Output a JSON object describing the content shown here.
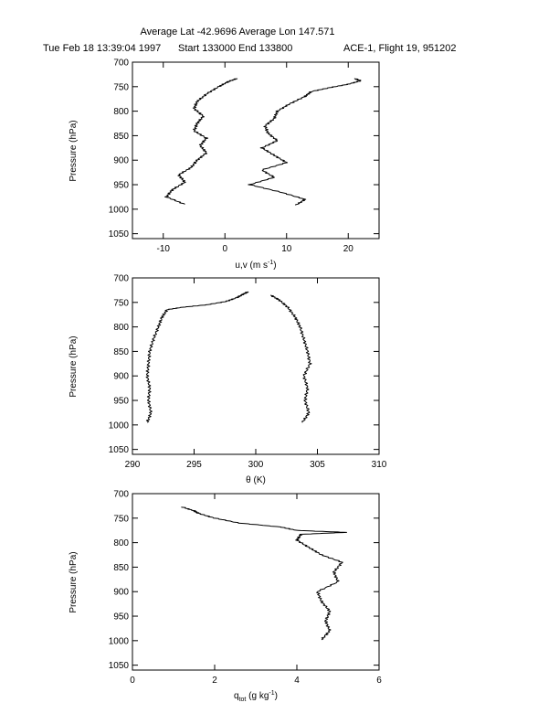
{
  "header": {
    "line1": "Average Lat -42.9696  Average Lon 147.571",
    "date": "Tue Feb 18 13:39:04 1997",
    "start_end": "Start 133000  End 133800",
    "flight": "ACE-1, Flight 19, 951202"
  },
  "chart_data": [
    {
      "type": "line",
      "title": "",
      "xlabel": "u,v (m s",
      "xlabel_sup": "-1",
      "xlabel_tail": ")",
      "ylabel": "Pressure (hPa)",
      "xlim": [
        -15,
        25
      ],
      "ylim": [
        1060,
        700
      ],
      "xticks": [
        -10,
        0,
        10,
        20
      ],
      "yticks": [
        700,
        750,
        800,
        850,
        900,
        950,
        1000,
        1050
      ],
      "series": [
        {
          "y": [
            990,
            975,
            960,
            945,
            930,
            915,
            900,
            885,
            870,
            855,
            840,
            825,
            810,
            795,
            780,
            765,
            750,
            740,
            733
          ],
          "x": [
            -6.5,
            -9.5,
            -8.5,
            -6.5,
            -7.5,
            -5.5,
            -4.5,
            -3.0,
            -4.0,
            -3.0,
            -5.0,
            -4.5,
            -3.5,
            -5.0,
            -4.5,
            -3.0,
            -1.0,
            0.5,
            2.0
          ]
        },
        {
          "y": [
            992,
            980,
            965,
            950,
            935,
            920,
            905,
            890,
            875,
            860,
            845,
            830,
            815,
            800,
            785,
            770,
            760,
            752,
            745,
            738,
            733
          ],
          "x": [
            11.5,
            13.0,
            9.0,
            4.0,
            8.0,
            6.0,
            10.0,
            8.0,
            6.0,
            8.5,
            7.0,
            6.5,
            8.0,
            8.5,
            10.5,
            13.0,
            14.0,
            17.0,
            20.0,
            22.0,
            21.0
          ]
        }
      ]
    },
    {
      "type": "line",
      "title": "",
      "xlabel": "θ (K)",
      "ylabel": "Pressure (hPa)",
      "xlim": [
        290,
        310
      ],
      "ylim": [
        1060,
        700
      ],
      "xticks": [
        290,
        295,
        300,
        305,
        310
      ],
      "yticks": [
        700,
        750,
        800,
        850,
        900,
        950,
        1000,
        1050
      ],
      "series": [
        {
          "y": [
            995,
            975,
            950,
            925,
            900,
            875,
            850,
            825,
            800,
            780,
            765,
            760,
            755,
            748,
            740,
            733,
            728
          ],
          "x": [
            291.2,
            291.5,
            291.3,
            291.4,
            291.2,
            291.3,
            291.4,
            291.7,
            292.1,
            292.4,
            292.8,
            294.0,
            296.0,
            297.6,
            298.5,
            299.0,
            299.4
          ]
        },
        {
          "y": [
            995,
            975,
            950,
            925,
            900,
            875,
            850,
            825,
            800,
            780,
            760,
            745,
            735
          ],
          "x": [
            303.8,
            304.3,
            304.0,
            304.2,
            303.9,
            304.4,
            304.2,
            303.9,
            303.6,
            303.2,
            302.6,
            301.9,
            301.2
          ]
        }
      ]
    },
    {
      "type": "line",
      "title": "",
      "xlabel": "q",
      "xlabel_sub": "tot",
      "xlabel_tail": " (g kg",
      "xlabel_sup": "-1",
      "xlabel_end": ")",
      "ylabel": "Pressure (hPa)",
      "xlim": [
        0,
        6
      ],
      "ylim": [
        1060,
        700
      ],
      "xticks": [
        0,
        2,
        4,
        6
      ],
      "yticks": [
        700,
        750,
        800,
        850,
        900,
        950,
        1000,
        1050
      ],
      "series": [
        {
          "y": [
            998,
            980,
            960,
            940,
            920,
            900,
            880,
            860,
            840,
            825,
            810,
            795,
            783,
            779,
            775,
            768,
            760,
            750,
            740,
            735,
            727
          ],
          "x": [
            4.6,
            4.8,
            4.7,
            4.8,
            4.6,
            4.5,
            5.0,
            4.9,
            5.1,
            4.6,
            4.3,
            4.0,
            4.1,
            5.2,
            4.0,
            3.6,
            2.6,
            2.0,
            1.6,
            1.5,
            1.2
          ]
        }
      ]
    }
  ]
}
